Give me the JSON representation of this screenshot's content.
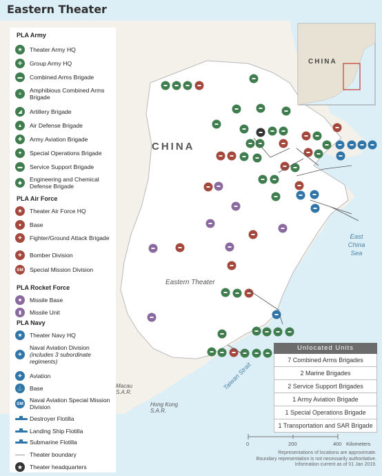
{
  "title": "Eastern Theater",
  "map": {
    "country_label": "CHINA",
    "inset_country_label": "CHINA",
    "region_label": "Eastern Theater",
    "sea_label": "East China Sea",
    "strait_label": "Taiwan Strait",
    "places": [
      {
        "name": "Macau S.A.R."
      },
      {
        "name": "Hong Kong S.A.R."
      }
    ],
    "colors": {
      "land": "#f4f1ea",
      "theater": "#ffffff",
      "water": "#dceef6",
      "army": "#3f7d4f",
      "air_force": "#a4483d",
      "rocket_force": "#8a6a9e",
      "navy": "#2f75a8"
    }
  },
  "legend": {
    "army": {
      "heading": "PLA Army",
      "items": [
        {
          "label": "Theater Army HQ",
          "icon": "theater-army-hq-icon"
        },
        {
          "label": "Group Army HQ",
          "icon": "group-army-hq-icon"
        },
        {
          "label": "Combined Arms Brigade",
          "icon": "combined-arms-brigade-icon"
        },
        {
          "label": "Amphibious Combined Arms Brigade",
          "icon": "amphibious-brigade-icon"
        },
        {
          "label": "Artillery Brigade",
          "icon": "artillery-brigade-icon"
        },
        {
          "label": "Air Defense Brigade",
          "icon": "air-defense-brigade-icon"
        },
        {
          "label": "Army Aviation Brigade",
          "icon": "army-aviation-brigade-icon"
        },
        {
          "label": "Special Operations Brigade",
          "icon": "special-operations-brigade-icon"
        },
        {
          "label": "Service Support Brigade",
          "icon": "service-support-brigade-icon"
        },
        {
          "label": "Engineering and Chemical Defense Brigade",
          "icon": "engineering-brigade-icon"
        }
      ]
    },
    "air_force": {
      "heading": "PLA Air Force",
      "items": [
        {
          "label": "Theater Air Force HQ",
          "icon": "theater-air-force-hq-icon"
        },
        {
          "label": "Base",
          "icon": "air-base-icon"
        },
        {
          "label": "Fighter/Ground Attack Brigade",
          "icon": "fighter-brigade-icon"
        },
        {
          "label": "Bomber Division",
          "icon": "bomber-division-icon"
        },
        {
          "label": "Special Mission Division",
          "icon": "special-mission-division-icon",
          "badge": "SM"
        }
      ]
    },
    "rocket_force": {
      "heading": "PLA Rocket Force",
      "items": [
        {
          "label": "Missile Base",
          "icon": "missile-base-icon"
        },
        {
          "label": "Missile Unit",
          "icon": "missile-unit-icon"
        }
      ]
    },
    "navy": {
      "heading": "PLA Navy",
      "items": [
        {
          "label": "Theater Navy HQ",
          "icon": "theater-navy-hq-icon"
        },
        {
          "label": "Naval Aviation Division",
          "note": "(includes 3 subordinate regiments)",
          "icon": "naval-aviation-division-icon"
        },
        {
          "label": "Aviation",
          "icon": "aviation-icon"
        },
        {
          "label": "Base",
          "icon": "naval-base-icon"
        },
        {
          "label": "Naval Aviation Special Mission Division",
          "icon": "naval-special-mission-icon",
          "badge": "SM"
        },
        {
          "label": "Destroyer Flotilla",
          "icon": "destroyer-flotilla-icon"
        },
        {
          "label": "Landing Ship Flotilla",
          "icon": "landing-ship-flotilla-icon"
        },
        {
          "label": "Submarine Flotilla",
          "icon": "submarine-flotilla-icon"
        }
      ]
    },
    "other": [
      {
        "label": "Theater boundary",
        "icon": "theater-boundary-icon"
      },
      {
        "label": "Theater headquarters",
        "icon": "theater-headquarters-icon"
      }
    ]
  },
  "unlocated": {
    "heading": "Unlocated Units",
    "rows": [
      "7 Combined Arms Brigades",
      "2 Marine Brigades",
      "2 Service Support Brigades",
      "1 Army Aviation Brigade",
      "1 Special Operations Brigade",
      "1 Transportation and SAR Brigade"
    ]
  },
  "scale": {
    "ticks": [
      "0",
      "200",
      "400"
    ],
    "unit": "Kilometers"
  },
  "note": [
    "Representations of locations are approximate.",
    "Boundary representation is not necessarily authoritative.",
    "Information current as of 01 Jan 2019."
  ]
}
